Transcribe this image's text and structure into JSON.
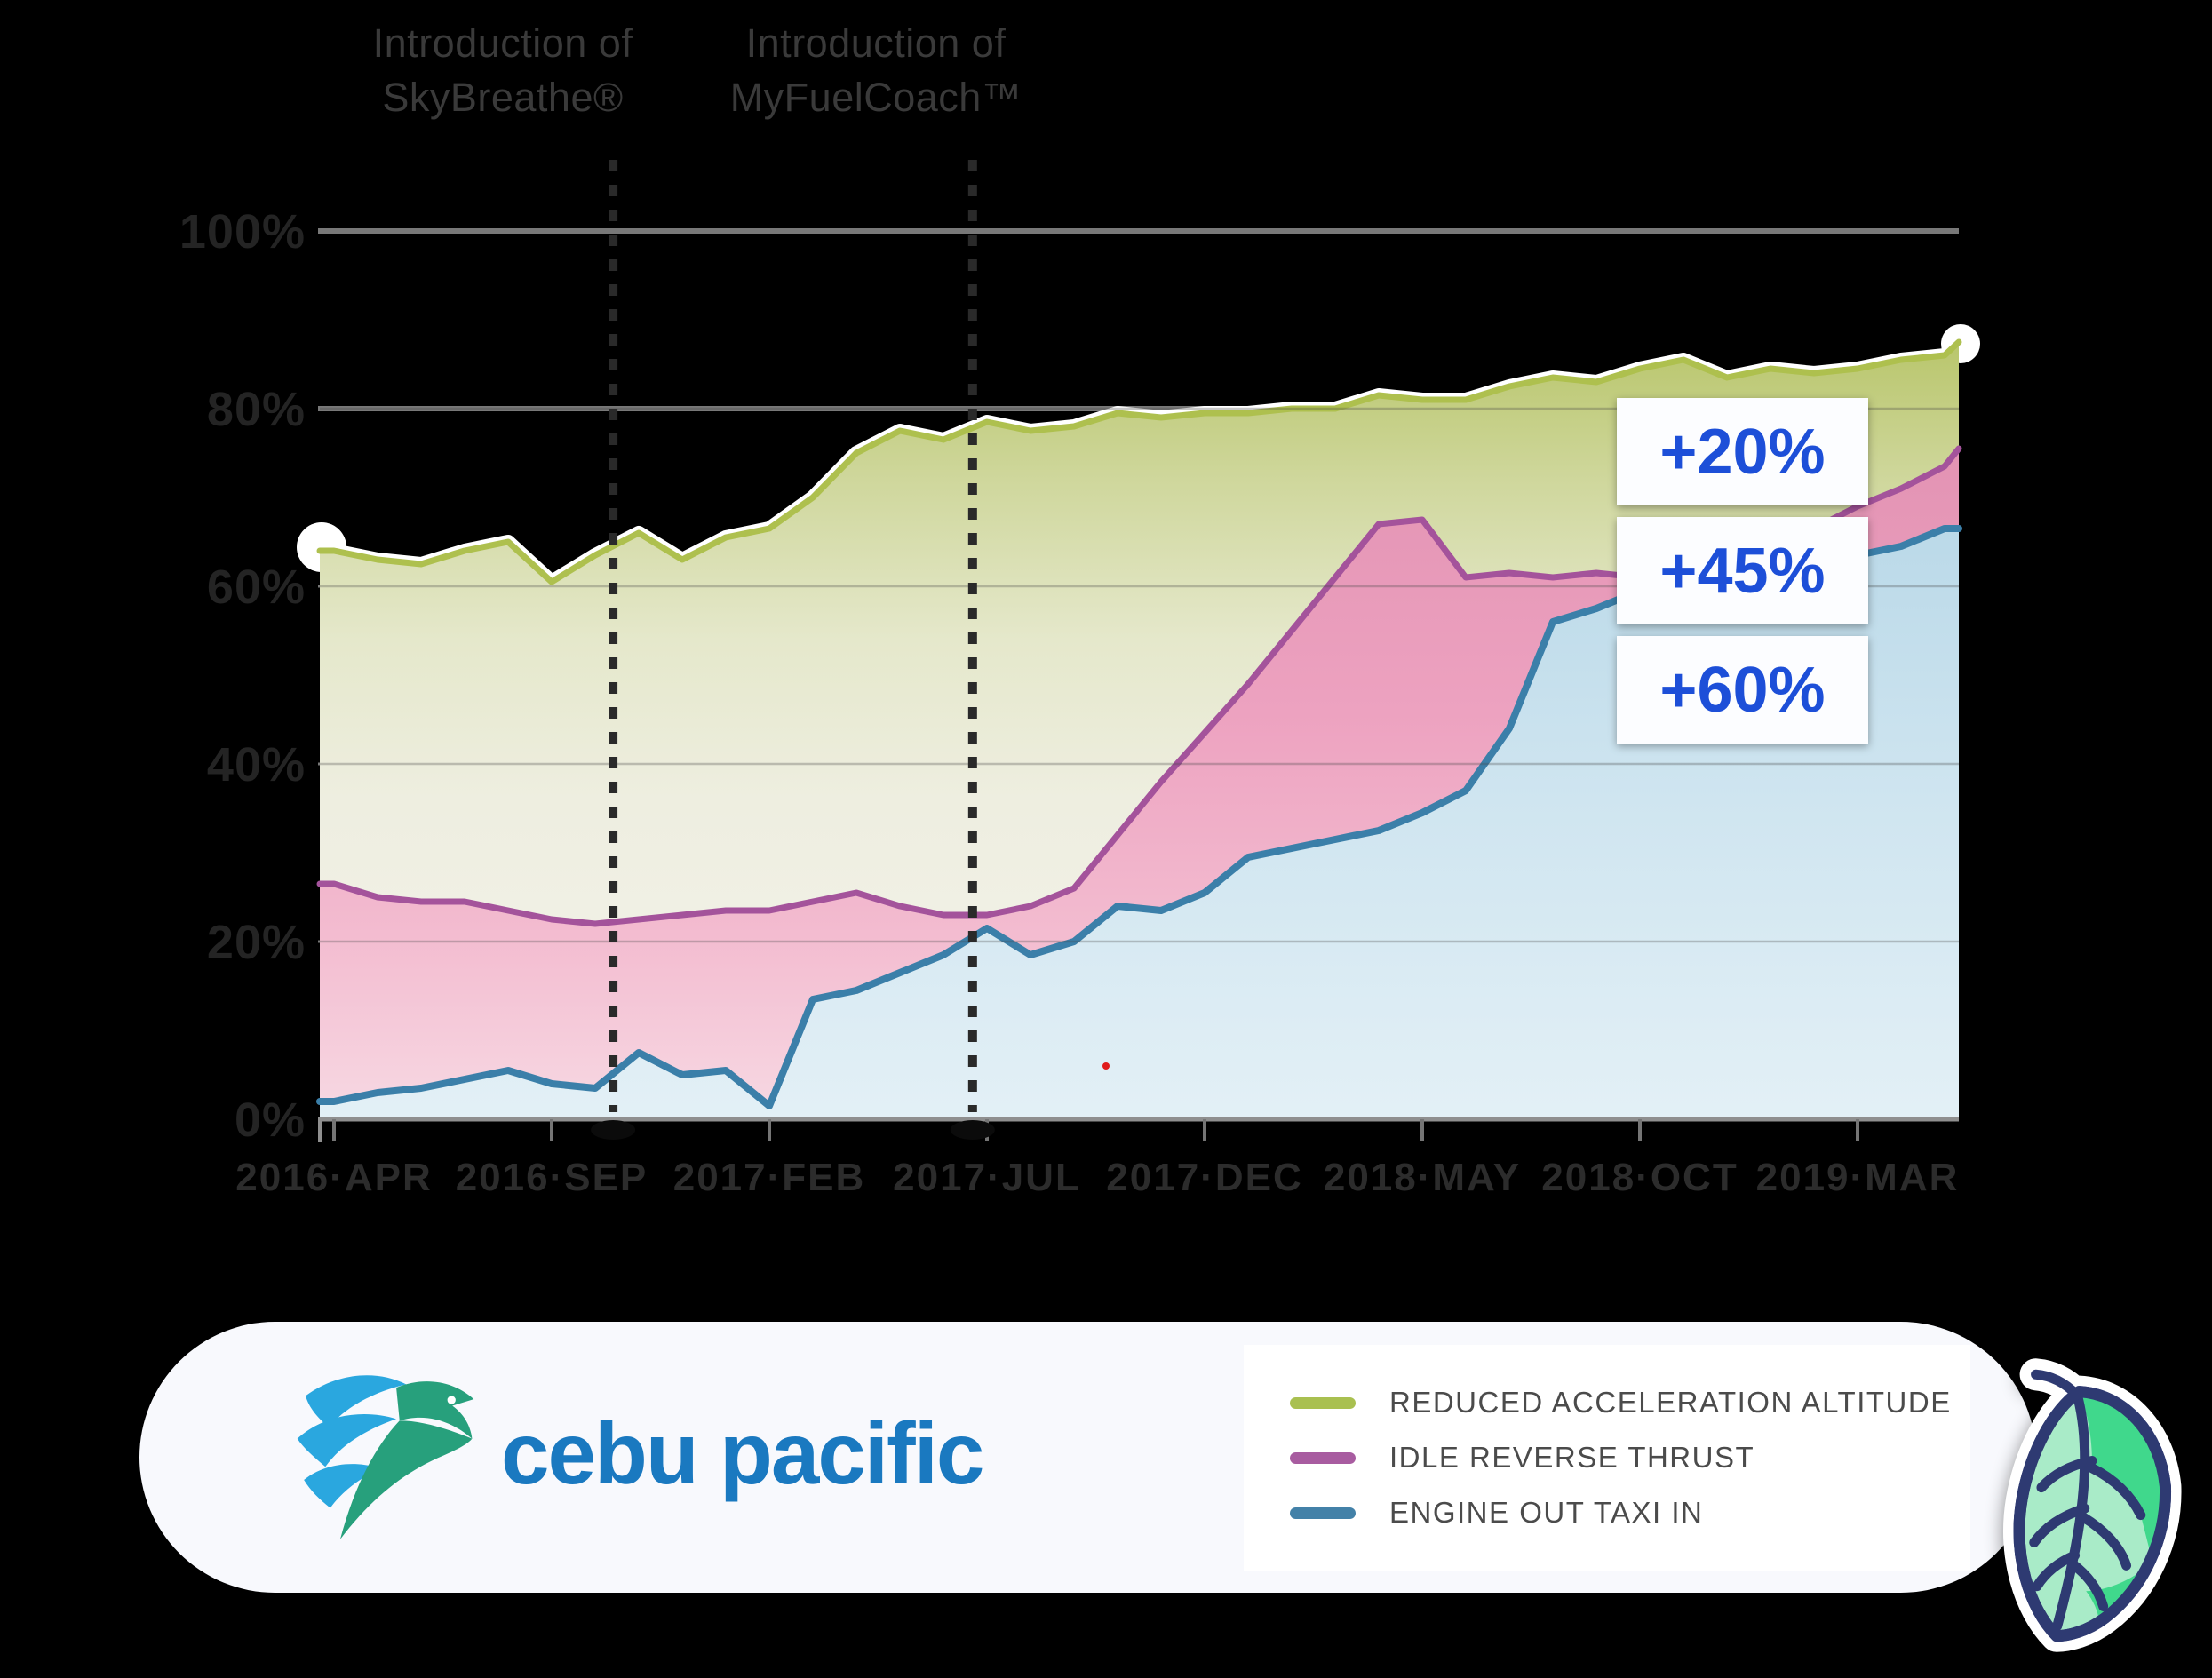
{
  "colors": {
    "background": "#000000",
    "badge_text_blue": "#1d4fd8",
    "wordmark_blue": "#1a79c0",
    "eagle_blue": "#2aa7df",
    "eagle_teal": "#27a07c",
    "leaf_navy": "#2e3a72",
    "leaf_green": "#40d88c",
    "leaf_mint": "#a9ebc8",
    "annotation_gray": "#3a3a3a",
    "axis_label_gray": "#262626",
    "gridline_gray": "#787878"
  },
  "annotations": [
    {
      "line1": "Introduction of",
      "line2": "SkyBreathe®"
    },
    {
      "line1": "Introduction of",
      "line2": "MyFuelCoach™"
    }
  ],
  "badges": {
    "color": "#1d4fd8",
    "items": [
      {
        "label": "+20%"
      },
      {
        "label": "+45%"
      },
      {
        "label": "+60%"
      }
    ]
  },
  "footer": {
    "brand_name": "cebu pacific",
    "logo_icon": "cebu-pacific-eagle-icon",
    "sticker_icon": "skybreathe-leaf-icon",
    "legend": [
      {
        "label": "REDUCED ACCELERATION ALTITUDE",
        "color": "#a9c050"
      },
      {
        "label": "IDLE REVERSE THRUST",
        "color": "#a85ca0"
      },
      {
        "label": "ENGINE OUT TAXI IN",
        "color": "#4381a8"
      }
    ]
  },
  "chart_data": {
    "type": "area",
    "title": "",
    "xlabel": "",
    "ylabel": "",
    "ylim": [
      0,
      100
    ],
    "grid": true,
    "legend_position": "footer-card",
    "y_tick_labels": [
      "0%",
      "20%",
      "40%",
      "60%",
      "80%",
      "100%"
    ],
    "x_tick_labels": [
      "2016·APR",
      "2016·SEP",
      "2017·FEB",
      "2017·JUL",
      "2017·DEC",
      "2018·MAY",
      "2018·OCT",
      "2019·MAR"
    ],
    "x_tick_month_indices": [
      0,
      5,
      10,
      15,
      20,
      25,
      30,
      35
    ],
    "months": [
      "2016-04",
      "2016-05",
      "2016-06",
      "2016-07",
      "2016-08",
      "2016-09",
      "2016-10",
      "2016-11",
      "2016-12",
      "2017-01",
      "2017-02",
      "2017-03",
      "2017-04",
      "2017-05",
      "2017-06",
      "2017-07",
      "2017-08",
      "2017-09",
      "2017-10",
      "2017-11",
      "2017-12",
      "2018-01",
      "2018-02",
      "2018-03",
      "2018-04",
      "2018-05",
      "2018-06",
      "2018-07",
      "2018-08",
      "2018-09",
      "2018-10",
      "2018-11",
      "2018-12",
      "2019-01",
      "2019-02",
      "2019-03",
      "2019-04",
      "2019-05",
      "2019-06"
    ],
    "series": [
      {
        "name": "REDUCED ACCELERATION ALTITUDE",
        "color": "#aec04e",
        "values": [
          64,
          63,
          62.5,
          64,
          65,
          60.5,
          63.5,
          66,
          63,
          65.5,
          66.5,
          70,
          75,
          77.5,
          76.5,
          78.5,
          77.5,
          78,
          79.5,
          79,
          79.5,
          79.5,
          80,
          80,
          81.5,
          81,
          81,
          82.5,
          83.5,
          83,
          84.5,
          85.5,
          83.5,
          84.5,
          84,
          84.5,
          85.5,
          86,
          87.5
        ]
      },
      {
        "name": "IDLE REVERSE THRUST",
        "color": "#a4539b",
        "values": [
          26.5,
          25,
          24.5,
          24.5,
          23.5,
          22.5,
          22,
          22.5,
          23,
          23.5,
          23.5,
          24.5,
          25.5,
          24,
          23,
          23,
          24,
          26,
          32,
          38,
          43.5,
          49,
          55,
          61,
          67,
          67.5,
          61,
          61.5,
          61,
          61.5,
          61,
          62,
          63,
          64.5,
          66.5,
          69,
          71,
          73.5,
          75.5
        ]
      },
      {
        "name": "ENGINE OUT TAXI IN",
        "color": "#3b7fa9",
        "values": [
          2,
          3,
          3.5,
          4.5,
          5.5,
          4,
          3.5,
          7.5,
          5,
          5.5,
          1.5,
          13.5,
          14.5,
          16.5,
          18.5,
          21.5,
          18.5,
          20,
          24,
          23.5,
          25.5,
          29.5,
          30.5,
          31.5,
          32.5,
          34.5,
          37,
          44,
          56,
          57.5,
          59.5,
          60.5,
          60.5,
          62,
          61.5,
          63.5,
          64.5,
          66.5,
          66.5
        ]
      }
    ],
    "events": [
      {
        "label": "Introduction of SkyBreathe®",
        "month_index": 6.41
      },
      {
        "label": "Introduction of MyFuelCoach™",
        "month_index": 14.67
      }
    ]
  }
}
